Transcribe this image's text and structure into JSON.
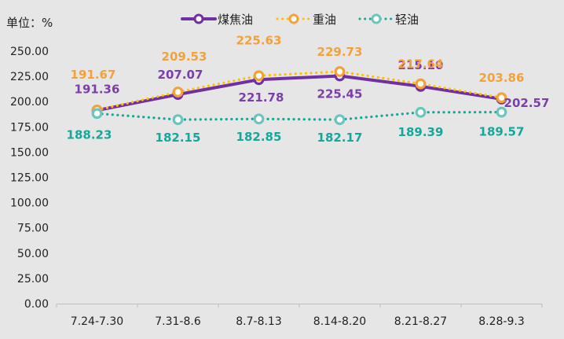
{
  "chart_data": {
    "type": "line",
    "unit_label": "单位：%",
    "categories": [
      "7.24-7.30",
      "7.31-8.6",
      "8.7-8.13",
      "8.14-8.20",
      "8.21-8.27",
      "8.28-9.3"
    ],
    "ylim": [
      0,
      250
    ],
    "yticks": [
      "0.00",
      "25.00",
      "50.00",
      "75.00",
      "100.00",
      "125.00",
      "150.00",
      "175.00",
      "200.00",
      "225.00",
      "250.00"
    ],
    "grid": false,
    "legend_position": "top-center",
    "series": [
      {
        "name": "煤焦油",
        "line_style": "solid",
        "color": "#7030a0",
        "label_color": "#7b3fa8",
        "values": [
          191.36,
          207.07,
          221.78,
          225.45,
          215.1,
          202.57
        ],
        "labels": [
          "191.36",
          "207.07",
          "221.78",
          "225.45",
          "215.10",
          "202.57"
        ]
      },
      {
        "name": "重油",
        "line_style": "dotted",
        "color": "#ffc000",
        "marker_color": "#f4a13a",
        "label_color": "#f4a13a",
        "values": [
          191.67,
          209.53,
          225.63,
          229.73,
          217.64,
          203.86
        ],
        "labels": [
          "191.67",
          "209.53",
          "225.63",
          "229.73",
          "217.64",
          "203.86"
        ]
      },
      {
        "name": "轻油",
        "line_style": "dotted",
        "color": "#17a798",
        "marker_color": "#6cc5bd",
        "label_color": "#13a89a",
        "values": [
          188.23,
          182.15,
          182.85,
          182.17,
          189.39,
          189.57
        ],
        "labels": [
          "188.23",
          "182.15",
          "182.85",
          "182.17",
          "189.39",
          "189.57"
        ]
      }
    ]
  }
}
